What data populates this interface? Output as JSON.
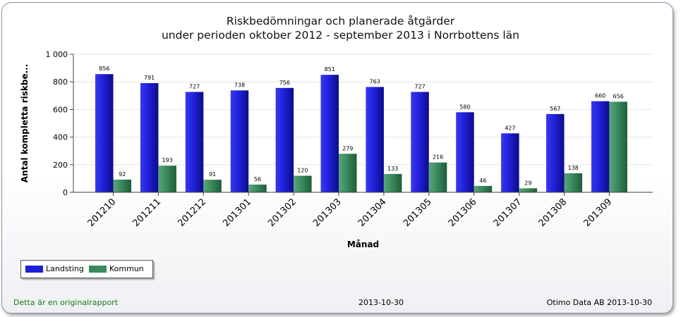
{
  "chart_data": {
    "type": "bar",
    "title": "Riskbedömningar och planerade åtgärder",
    "subtitle": "under perioden oktober 2012 - september 2013 i Norrbottens län",
    "xlabel": "Månad",
    "ylabel": "Antal kompletta riskbe...",
    "ylim": [
      0,
      1000
    ],
    "yticks": [
      0,
      200,
      400,
      600,
      800,
      1000
    ],
    "ytick_labels": [
      "0",
      "200",
      "400",
      "600",
      "800",
      "1 000"
    ],
    "grid": true,
    "legend_position": "bottom-left",
    "categories": [
      "201210",
      "201211",
      "201212",
      "201301",
      "201302",
      "201303",
      "201304",
      "201305",
      "201306",
      "201307",
      "201308",
      "201309"
    ],
    "series": [
      {
        "name": "Landsting",
        "color": "#1f1fd6",
        "values": [
          856,
          791,
          727,
          738,
          756,
          851,
          763,
          727,
          580,
          427,
          567,
          660
        ]
      },
      {
        "name": "Kommun",
        "color": "#3a8a5c",
        "values": [
          92,
          193,
          91,
          56,
          120,
          279,
          133,
          216,
          46,
          29,
          138,
          656
        ]
      }
    ]
  },
  "footer": {
    "left": "Detta är en originalrapport",
    "center": "2013-10-30",
    "right": "Otimo Data AB 2013-10-30"
  },
  "colors": {
    "landsting": "#1f1fd6",
    "kommun": "#3a8a5c",
    "footer_green": "#1a7a1a"
  }
}
